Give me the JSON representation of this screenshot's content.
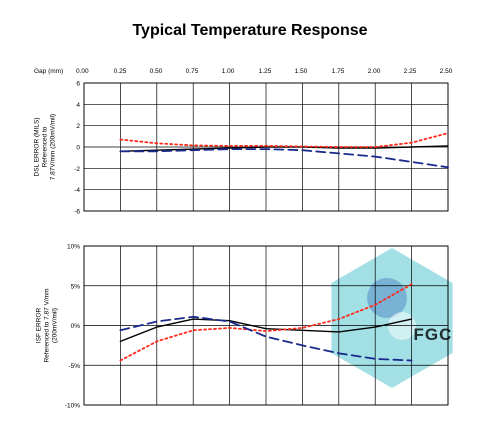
{
  "title": "Typical Temperature Response",
  "watermark_text": "FGC",
  "colors": {
    "black_series": "#000000",
    "red_series": "#ff2a1a",
    "blue_series": "#1a2a8c",
    "grid": "#000000",
    "watermark": "#58c6cf"
  },
  "chart_data": [
    {
      "type": "line",
      "xlabel": "Gap (mm)",
      "x_ticks": [
        "0.00",
        "0.25",
        "0.50",
        "0.75",
        "1.00",
        "1.25",
        "1.50",
        "1.75",
        "2.00",
        "2.25",
        "2.50"
      ],
      "xlim": [
        0,
        2.5
      ],
      "ylabel": [
        "DSL ERROR (MILS)",
        "Referenced to",
        "7.87V/mm (200mV/mil)"
      ],
      "ylim": [
        -6,
        6
      ],
      "y_ticks": [
        "6",
        "4",
        "2",
        "0",
        "-2",
        "-4",
        "-6"
      ],
      "grid": true,
      "series": [
        {
          "color": "#000000",
          "style": "solid",
          "x": [
            0.25,
            0.5,
            0.75,
            1.0,
            1.25,
            1.5,
            1.75,
            2.0,
            2.25,
            2.5
          ],
          "values": [
            -0.4,
            -0.3,
            -0.2,
            -0.1,
            0.0,
            0.0,
            -0.1,
            -0.1,
            0.0,
            0.1
          ]
        },
        {
          "color": "#ff2a1a",
          "style": "dotted",
          "x": [
            0.25,
            0.5,
            0.75,
            1.0,
            1.25,
            1.5,
            1.75,
            2.0,
            2.25,
            2.5
          ],
          "values": [
            0.7,
            0.35,
            0.15,
            0.1,
            0.1,
            0.05,
            0.0,
            0.0,
            0.4,
            1.3
          ]
        },
        {
          "color": "#1a2a8c",
          "style": "dashed",
          "x": [
            0.25,
            0.5,
            0.75,
            1.0,
            1.25,
            1.5,
            1.75,
            2.0,
            2.25,
            2.5
          ],
          "values": [
            -0.4,
            -0.4,
            -0.3,
            -0.2,
            -0.2,
            -0.3,
            -0.6,
            -0.9,
            -1.4,
            -1.9
          ]
        }
      ]
    },
    {
      "type": "line",
      "xlim": [
        0,
        2.5
      ],
      "ylabel": [
        "ISF ERROR",
        "Referenced to 7.87 V/mm",
        "(200mV/mil)"
      ],
      "ylim": [
        -10,
        10
      ],
      "y_ticks": [
        "10%",
        "5%",
        "0%",
        "-5%",
        "-10%"
      ],
      "grid": true,
      "series": [
        {
          "color": "#000000",
          "style": "solid",
          "x": [
            0.25,
            0.5,
            0.75,
            1.0,
            1.25,
            1.5,
            1.75,
            2.0,
            2.25
          ],
          "values": [
            -2.0,
            -0.2,
            0.8,
            0.6,
            -0.4,
            -0.6,
            -0.8,
            -0.2,
            0.8
          ]
        },
        {
          "color": "#ff2a1a",
          "style": "dotted",
          "x": [
            0.25,
            0.5,
            0.75,
            1.0,
            1.25,
            1.5,
            1.75,
            2.0,
            2.25
          ],
          "values": [
            -4.4,
            -2.0,
            -0.6,
            -0.3,
            -0.7,
            -0.3,
            0.8,
            2.6,
            5.2
          ]
        },
        {
          "color": "#1a2a8c",
          "style": "dashed",
          "x": [
            0.25,
            0.5,
            0.75,
            1.0,
            1.25,
            1.5,
            1.75,
            2.0,
            2.25
          ],
          "values": [
            -0.6,
            0.5,
            1.1,
            0.5,
            -1.4,
            -2.5,
            -3.5,
            -4.2,
            -4.4
          ]
        }
      ]
    }
  ]
}
